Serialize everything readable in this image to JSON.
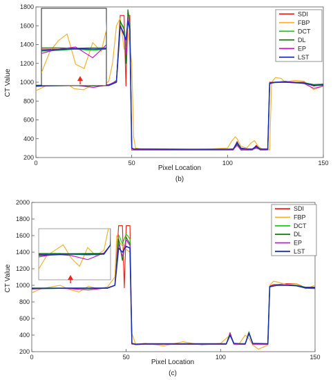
{
  "chart_data": [
    {
      "type": "line",
      "panel_caption": "(b)",
      "xlabel": "Pixel Location",
      "ylabel": "CT Value",
      "xlim": [
        0,
        150
      ],
      "ylim": [
        200,
        1800
      ],
      "xticks": [
        0,
        50,
        100,
        150
      ],
      "yticks": [
        200,
        400,
        600,
        800,
        1000,
        1200,
        1400,
        1600,
        1800
      ],
      "legend_position": "top-right",
      "inset": {
        "location": "top-left",
        "arrow_color": "#e8281e"
      },
      "series": [
        {
          "name": "SDI",
          "color": "#e8281e",
          "x": [
            0,
            10,
            20,
            30,
            38,
            42,
            44,
            46,
            47,
            48,
            49,
            50,
            51,
            52,
            60,
            80,
            100,
            103,
            105,
            107,
            110,
            113,
            115,
            117,
            121,
            122,
            123,
            125,
            130,
            135,
            140,
            145,
            150
          ],
          "y": [
            965,
            965,
            965,
            965,
            965,
            1000,
            1710,
            1710,
            960,
            1710,
            1710,
            280,
            280,
            280,
            280,
            280,
            280,
            280,
            370,
            280,
            280,
            280,
            330,
            280,
            280,
            1000,
            1000,
            1000,
            1000,
            1000,
            1000,
            960,
            980
          ]
        },
        {
          "name": "FBP",
          "color": "#f2b233",
          "x": [
            0,
            5,
            10,
            15,
            20,
            25,
            30,
            35,
            38,
            40,
            42,
            44,
            46,
            48,
            50,
            51,
            52,
            55,
            60,
            70,
            80,
            90,
            100,
            102,
            104,
            105,
            107,
            110,
            112,
            114,
            116,
            118,
            122,
            123,
            125,
            128,
            130,
            135,
            140,
            145,
            150
          ],
          "y": [
            910,
            960,
            985,
            1000,
            930,
            920,
            980,
            960,
            1010,
            1200,
            1600,
            1680,
            1350,
            1580,
            1200,
            420,
            300,
            290,
            290,
            285,
            285,
            290,
            300,
            370,
            420,
            400,
            320,
            300,
            350,
            380,
            320,
            290,
            280,
            1000,
            1050,
            1040,
            1000,
            1020,
            1010,
            920,
            960
          ]
        },
        {
          "name": "DCT",
          "color": "#1ec81e",
          "x": [
            0,
            10,
            20,
            30,
            38,
            42,
            44,
            46,
            47,
            48,
            49,
            50,
            51,
            52,
            60,
            80,
            100,
            103,
            105,
            107,
            110,
            113,
            115,
            117,
            121,
            122,
            123,
            125,
            130,
            135,
            140,
            145,
            150
          ],
          "y": [
            960,
            962,
            965,
            962,
            965,
            1020,
            1640,
            1580,
            1380,
            1690,
            1600,
            300,
            285,
            285,
            285,
            285,
            285,
            285,
            350,
            290,
            285,
            285,
            320,
            285,
            285,
            985,
            990,
            995,
            1000,
            995,
            990,
            970,
            975
          ]
        },
        {
          "name": "DL",
          "color": "#137a13",
          "x": [
            0,
            10,
            20,
            30,
            38,
            42,
            44,
            46,
            47,
            48,
            49,
            50,
            51,
            52,
            60,
            80,
            100,
            103,
            105,
            107,
            110,
            113,
            115,
            117,
            121,
            122,
            123,
            125,
            130,
            135,
            140,
            145,
            150
          ],
          "y": [
            968,
            968,
            967,
            968,
            968,
            1000,
            1650,
            1560,
            1200,
            1770,
            1640,
            300,
            285,
            285,
            285,
            285,
            285,
            285,
            340,
            290,
            285,
            285,
            310,
            285,
            285,
            990,
            995,
            1000,
            1005,
            1000,
            995,
            975,
            980
          ]
        },
        {
          "name": "EP",
          "color": "#c21ec2",
          "x": [
            0,
            10,
            20,
            30,
            38,
            42,
            44,
            46,
            47,
            48,
            49,
            50,
            51,
            52,
            60,
            80,
            100,
            103,
            105,
            107,
            110,
            113,
            115,
            117,
            121,
            122,
            123,
            125,
            130,
            135,
            140,
            145,
            150
          ],
          "y": [
            955,
            965,
            970,
            945,
            975,
            1010,
            1600,
            1520,
            1300,
            1700,
            1550,
            300,
            285,
            285,
            285,
            285,
            285,
            285,
            330,
            280,
            285,
            285,
            300,
            285,
            285,
            980,
            990,
            1000,
            1010,
            1000,
            985,
            935,
            960
          ]
        },
        {
          "name": "LST",
          "color": "#1a2fb0",
          "x": [
            0,
            10,
            20,
            30,
            38,
            42,
            44,
            46,
            47,
            48,
            49,
            50,
            51,
            52,
            60,
            80,
            100,
            103,
            105,
            107,
            110,
            113,
            115,
            117,
            121,
            122,
            123,
            125,
            130,
            135,
            140,
            145,
            150
          ],
          "y": [
            962,
            964,
            966,
            965,
            966,
            1000,
            1600,
            1500,
            1450,
            1650,
            1560,
            300,
            290,
            290,
            290,
            288,
            288,
            290,
            360,
            300,
            290,
            290,
            320,
            290,
            290,
            990,
            995,
            1000,
            1000,
            995,
            990,
            965,
            970
          ]
        }
      ]
    },
    {
      "type": "line",
      "panel_caption": "(c)",
      "xlabel": "Pixel Location",
      "ylabel": "CT Value",
      "xlim": [
        0,
        150
      ],
      "ylim": [
        200,
        2000
      ],
      "xticks": [
        0,
        50,
        100,
        150
      ],
      "yticks": [
        200,
        400,
        600,
        800,
        1000,
        1200,
        1400,
        1600,
        1800,
        2000
      ],
      "legend_position": "top-right",
      "inset": {
        "location": "left",
        "arrow_color": "#e8281e"
      },
      "series": [
        {
          "name": "SDI",
          "color": "#e8281e",
          "x": [
            0,
            10,
            20,
            30,
            40,
            44,
            46,
            48,
            49,
            50,
            52,
            53,
            55,
            60,
            80,
            100,
            103,
            105,
            107,
            110,
            113,
            115,
            117,
            125,
            126,
            128,
            130,
            135,
            140,
            145,
            150
          ],
          "y": [
            965,
            965,
            965,
            965,
            965,
            1000,
            1720,
            1720,
            970,
            1720,
            1720,
            290,
            290,
            290,
            290,
            290,
            290,
            430,
            290,
            290,
            290,
            440,
            290,
            290,
            990,
            1010,
            1010,
            1020,
            1020,
            970,
            970
          ]
        },
        {
          "name": "FBP",
          "color": "#f2b233",
          "x": [
            0,
            5,
            10,
            15,
            20,
            25,
            30,
            35,
            40,
            44,
            45,
            47,
            49,
            52,
            53,
            55,
            60,
            70,
            80,
            90,
            100,
            103,
            105,
            107,
            110,
            113,
            115,
            117,
            120,
            125,
            126,
            128,
            130,
            135,
            140,
            145,
            150
          ],
          "y": [
            910,
            960,
            980,
            1000,
            950,
            920,
            990,
            960,
            980,
            1100,
            1600,
            1500,
            1450,
            1400,
            420,
            290,
            300,
            270,
            320,
            280,
            300,
            360,
            400,
            290,
            300,
            400,
            360,
            280,
            230,
            280,
            1000,
            1050,
            1040,
            1010,
            1020,
            960,
            1000
          ]
        },
        {
          "name": "DCT",
          "color": "#1ec81e",
          "x": [
            0,
            10,
            20,
            30,
            40,
            44,
            46,
            48,
            50,
            52,
            53,
            55,
            60,
            80,
            100,
            103,
            105,
            107,
            110,
            113,
            115,
            117,
            125,
            126,
            128,
            130,
            135,
            140,
            145,
            150
          ],
          "y": [
            960,
            962,
            965,
            962,
            965,
            1000,
            1610,
            1500,
            1620,
            1560,
            300,
            285,
            290,
            290,
            290,
            290,
            420,
            300,
            290,
            290,
            440,
            300,
            290,
            980,
            990,
            1000,
            1005,
            1000,
            975,
            975
          ]
        },
        {
          "name": "DL",
          "color": "#137a13",
          "x": [
            0,
            10,
            20,
            30,
            40,
            44,
            46,
            48,
            50,
            52,
            53,
            55,
            60,
            80,
            100,
            103,
            105,
            107,
            110,
            113,
            115,
            117,
            125,
            126,
            128,
            130,
            135,
            140,
            145,
            150
          ],
          "y": [
            968,
            968,
            967,
            968,
            968,
            1000,
            1560,
            1300,
            1580,
            1500,
            300,
            285,
            290,
            290,
            290,
            290,
            410,
            300,
            290,
            290,
            430,
            300,
            290,
            985,
            995,
            1000,
            1005,
            1000,
            978,
            978
          ]
        },
        {
          "name": "EP",
          "color": "#c21ec2",
          "x": [
            0,
            10,
            20,
            30,
            40,
            44,
            46,
            48,
            50,
            52,
            53,
            55,
            60,
            80,
            100,
            103,
            105,
            107,
            110,
            113,
            115,
            117,
            125,
            126,
            128,
            130,
            135,
            140,
            145,
            150
          ],
          "y": [
            955,
            965,
            960,
            945,
            970,
            1000,
            1500,
            1350,
            1550,
            1480,
            300,
            285,
            290,
            290,
            290,
            290,
            420,
            290,
            290,
            290,
            430,
            290,
            290,
            980,
            990,
            1000,
            1005,
            995,
            965,
            960
          ]
        },
        {
          "name": "LST",
          "color": "#1a2fb0",
          "x": [
            0,
            10,
            20,
            30,
            40,
            44,
            46,
            48,
            50,
            52,
            53,
            55,
            60,
            80,
            100,
            103,
            105,
            107,
            110,
            113,
            115,
            117,
            125,
            126,
            128,
            130,
            135,
            140,
            145,
            150
          ],
          "y": [
            962,
            964,
            966,
            965,
            966,
            1000,
            1450,
            1400,
            1470,
            1450,
            300,
            290,
            295,
            295,
            295,
            295,
            400,
            300,
            295,
            295,
            420,
            300,
            295,
            985,
            995,
            1000,
            1000,
            995,
            970,
            970
          ]
        }
      ]
    }
  ]
}
